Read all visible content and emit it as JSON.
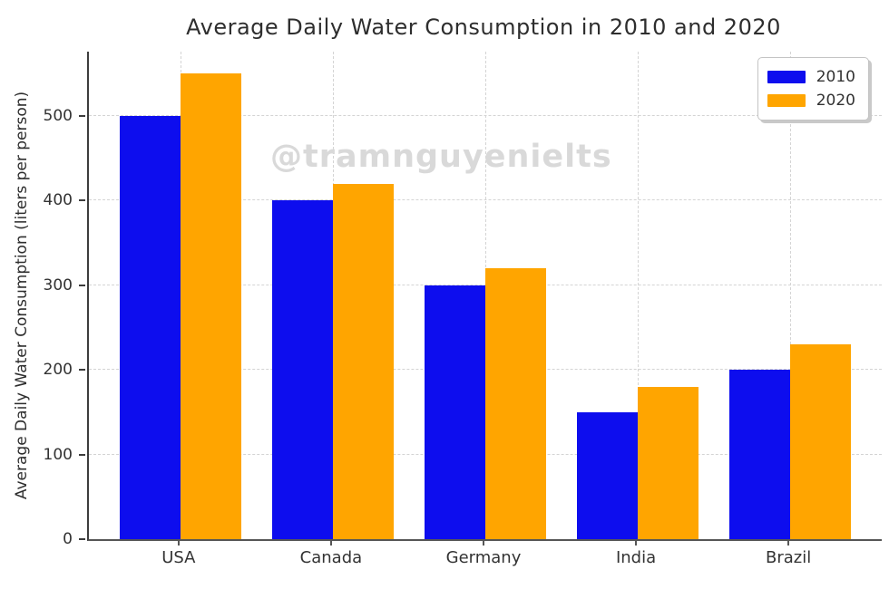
{
  "title": "Average Daily Water Consumption in 2010 and 2020",
  "watermark": "@tramnguyenielts",
  "chart_data": {
    "type": "bar",
    "title": "Average Daily Water Consumption in 2010 and 2020",
    "categories": [
      "USA",
      "Canada",
      "Germany",
      "India",
      "Brazil"
    ],
    "series": [
      {
        "name": "2010",
        "color": "#0d0dee",
        "values": [
          500,
          400,
          300,
          150,
          200
        ]
      },
      {
        "name": "2020",
        "color": "#ffa500",
        "values": [
          550,
          420,
          320,
          180,
          230
        ]
      }
    ],
    "xlabel": "",
    "ylabel": "Average Daily Water Consumption (liters per person)",
    "ylim": [
      0,
      576
    ],
    "yticks": [
      0,
      100,
      200,
      300,
      400,
      500
    ],
    "grid": true,
    "grid_style": "dashed",
    "legend_position": "upper right",
    "legend_labels": [
      "2010",
      "2020"
    ]
  }
}
